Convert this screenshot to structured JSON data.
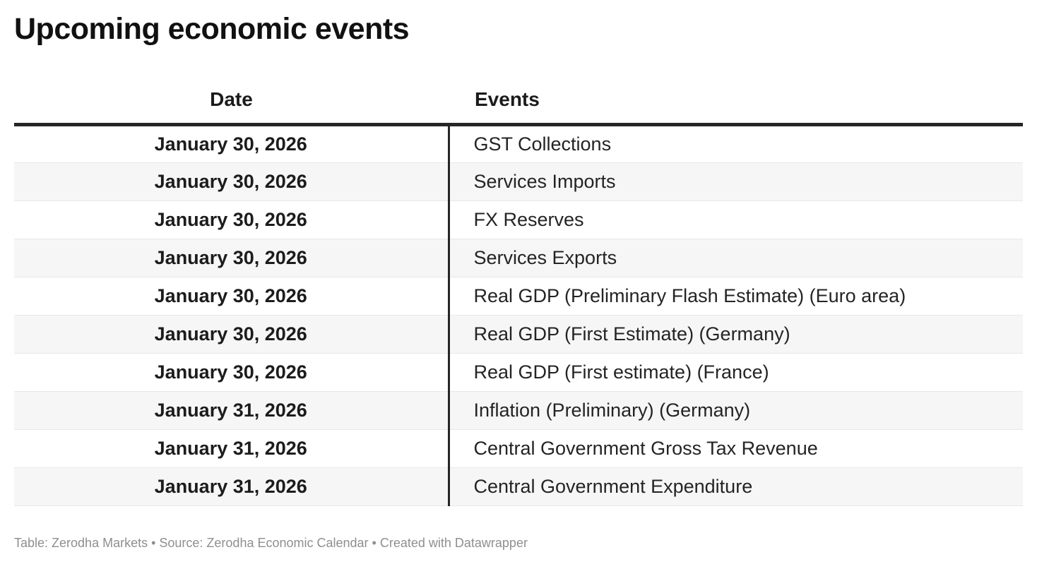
{
  "title": "Upcoming economic events",
  "footer": {
    "text": "Table: Zerodha Markets • Source: Zerodha Economic Calendar • Created with Datawrapper"
  },
  "colors": {
    "header_rule": "#262626",
    "column_divider": "#262626",
    "zebra_row": "#f6f6f6",
    "row_separator": "#e8e8e8",
    "title_text": "#111111",
    "body_text": "#242424",
    "footer_text": "#8f8f8f"
  },
  "chart_data": {
    "type": "table",
    "title": "Upcoming economic events",
    "columns": [
      "Date",
      "Events"
    ],
    "rows": [
      {
        "date": "January 30, 2026",
        "event": "GST Collections"
      },
      {
        "date": "January 30, 2026",
        "event": "Services Imports"
      },
      {
        "date": "January 30, 2026",
        "event": "FX Reserves"
      },
      {
        "date": "January 30, 2026",
        "event": "Services Exports"
      },
      {
        "date": "January 30, 2026",
        "event": "Real GDP (Preliminary Flash Estimate) (Euro area)"
      },
      {
        "date": "January 30, 2026",
        "event": "Real GDP (First Estimate) (Germany)"
      },
      {
        "date": "January 30, 2026",
        "event": "Real GDP (First estimate) (France)"
      },
      {
        "date": "January 31, 2026",
        "event": "Inflation (Preliminary) (Germany)"
      },
      {
        "date": "January 31, 2026",
        "event": "Central Government Gross Tax Revenue"
      },
      {
        "date": "January 31, 2026",
        "event": "Central Government Expenditure"
      }
    ],
    "layout": {
      "zebra_striping": true,
      "date_column_align": "center",
      "events_column_align": "left",
      "legend": "none",
      "grid": "horizontal-row-separators"
    }
  }
}
